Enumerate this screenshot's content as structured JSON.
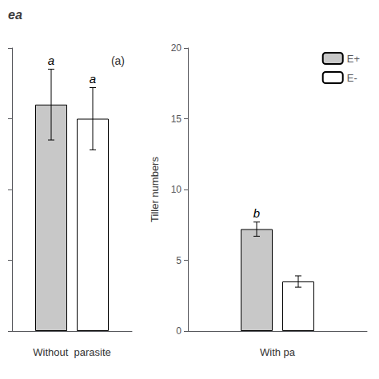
{
  "chart_data": [
    {
      "type": "bar",
      "title": "ea",
      "annotations": [
        "(a)"
      ],
      "xlabel": "Without  parasite",
      "categories": [
        null
      ],
      "series": [
        {
          "name": "E+",
          "color": "#c8c8c8",
          "values": [
            16.0
          ],
          "errors": [
            2.5
          ],
          "sig_labels": [
            "a"
          ]
        },
        {
          "name": "E-",
          "color": "#ffffff",
          "values": [
            15.0
          ],
          "errors": [
            2.2
          ],
          "sig_labels": [
            "a"
          ]
        }
      ],
      "ylim": [
        0,
        20
      ],
      "yticks": [
        0,
        5,
        10,
        15,
        20
      ],
      "tick_labels": false,
      "grid": false
    },
    {
      "type": "bar",
      "xlabel": "With pa",
      "ylabel": "Tiller numbers",
      "categories": [
        null
      ],
      "series": [
        {
          "name": "E+",
          "color": "#c8c8c8",
          "values": [
            7.2
          ],
          "errors": [
            0.5
          ],
          "sig_labels": [
            "b"
          ]
        },
        {
          "name": "E-",
          "color": "#ffffff",
          "values": [
            3.5
          ],
          "errors": [
            0.4
          ],
          "sig_labels": [
            null
          ]
        }
      ],
      "ylim": [
        0,
        20
      ],
      "yticks": [
        0,
        5,
        10,
        15,
        20
      ],
      "tick_labels": "y",
      "grid": false,
      "legend": "upper right"
    }
  ]
}
